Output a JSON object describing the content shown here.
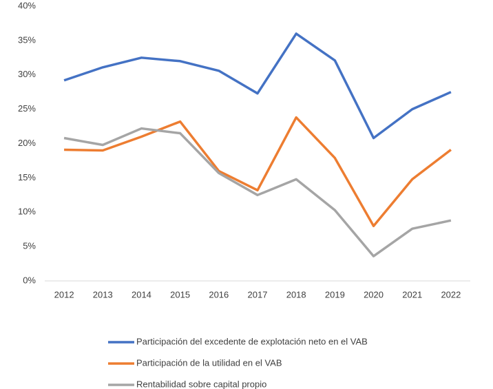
{
  "chart_data": {
    "type": "line",
    "categories": [
      "2012",
      "2013",
      "2014",
      "2015",
      "2016",
      "2017",
      "2018",
      "2019",
      "2020",
      "2021",
      "2022"
    ],
    "series": [
      {
        "name": "Participación del excedente de explotación neto en el VAB",
        "color": "#4472c4",
        "values": [
          29.2,
          31.1,
          32.5,
          32.0,
          30.6,
          27.3,
          36.0,
          32.1,
          20.8,
          25.0,
          27.5
        ]
      },
      {
        "name": "Participación de la utilidad en el VAB",
        "color": "#ed7d31",
        "values": [
          19.1,
          19.0,
          21.0,
          23.2,
          16.0,
          13.2,
          23.8,
          17.9,
          8.0,
          14.8,
          19.1
        ]
      },
      {
        "name": "Rentabilidad sobre capital propio",
        "color": "#a5a5a5",
        "values": [
          20.8,
          19.8,
          22.2,
          21.5,
          15.7,
          12.5,
          14.8,
          10.3,
          3.6,
          7.6,
          8.8
        ]
      }
    ],
    "ylim": [
      0,
      40
    ],
    "yticks": [
      {
        "value": 0,
        "label": "0%"
      },
      {
        "value": 5,
        "label": "5%"
      },
      {
        "value": 10,
        "label": "10%"
      },
      {
        "value": 15,
        "label": "15%"
      },
      {
        "value": 20,
        "label": "20%"
      },
      {
        "value": 25,
        "label": "25%"
      },
      {
        "value": 30,
        "label": "30%"
      },
      {
        "value": 35,
        "label": "35%"
      },
      {
        "value": 40,
        "label": "40%"
      }
    ],
    "grid": false
  }
}
